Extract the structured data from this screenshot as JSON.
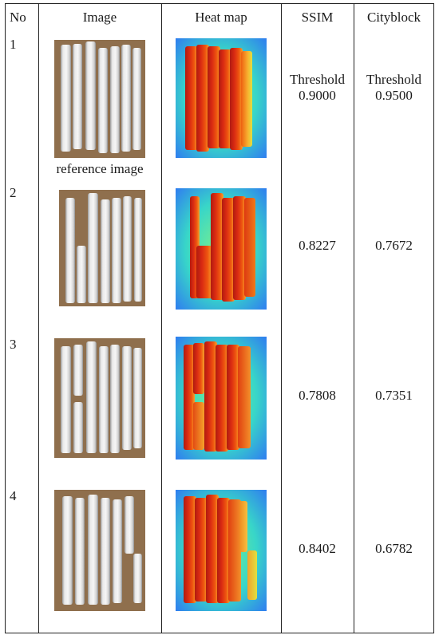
{
  "headers": {
    "no": "No",
    "image": "Image",
    "heat_map": "Heat map",
    "ssim": "SSIM",
    "cityblock": "Cityblock"
  },
  "rows": [
    {
      "no": "1",
      "image_caption": "reference image",
      "ssim_label": "Threshold",
      "ssim": "0.9000",
      "cityblock_label": "Threshold",
      "cityblock": "0.9500"
    },
    {
      "no": "2",
      "ssim": "0.8227",
      "cityblock": "0.7672"
    },
    {
      "no": "3",
      "ssim": "0.7808",
      "cityblock": "0.7351"
    },
    {
      "no": "4",
      "ssim": "0.8402",
      "cityblock": "0.6782"
    }
  ],
  "colors": {
    "grid": "#222222",
    "background": "#8f6f4d",
    "chalk": "#f0f0f0",
    "heat_hot": "#c41f12",
    "heat_cool": "#2f7df0"
  }
}
